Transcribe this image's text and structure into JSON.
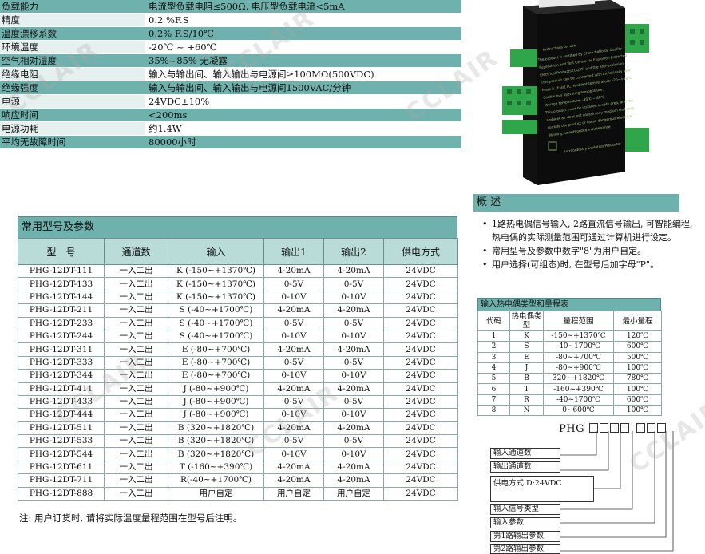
{
  "specs": [
    {
      "label": "负载能力",
      "value": "电流型负载电阻≤500Ω, 电压型负载电流<5mA",
      "style": "teal"
    },
    {
      "label": "精度",
      "value": "0.2 %F.S",
      "style": "white"
    },
    {
      "label": "温度漂移系数",
      "value": "0.2% F.S/10℃",
      "style": "teal"
    },
    {
      "label": "环境温度",
      "value": "-20℃ ~ +60℃",
      "style": "white"
    },
    {
      "label": "空气相对湿度",
      "value": "35%~85% 无凝露",
      "style": "teal"
    },
    {
      "label": "绝缘电阻",
      "value": "输入与输出间、输入输出与电源间≥100MΩ(500VDC)",
      "style": "white"
    },
    {
      "label": "绝缘强度",
      "value": "输入与输出间、输入输出与电源间1500VAC/分钟",
      "style": "teal"
    },
    {
      "label": "电源",
      "value": "24VDC±10%",
      "style": "white"
    },
    {
      "label": "响应时间",
      "value": "<200ms",
      "style": "teal"
    },
    {
      "label": "电源功耗",
      "value": "约1.4W",
      "style": "white"
    },
    {
      "label": "平均无故障时间",
      "value": "80000小时",
      "style": "teal"
    }
  ],
  "product": {
    "instructions_title": "Instructions for use",
    "lines": [
      "The product is certified by China National Quality",
      "Supervision and Test Centre for Explosion Protected",
      "Electrical Products (CQST) and the anti-explosion",
      "This product can be connected with intrinsically safe",
      "mark is [Exia] IIC. Ambient temperature: -20~+60℃",
      "Continuous operating temperature:",
      "Storage temperature: -40℃ ~ 80℃",
      "This product must be installed in safe area, and the",
      "ambient air does not contain any medium that may",
      "corrode the product or cause dangerous electrical",
      "Warning: unauthorized maintenance"
    ],
    "footer": "Extraordinary Evolution Productor"
  },
  "model_table": {
    "title": "常用型号及参数",
    "headers": [
      "型　号",
      "通道数",
      "输入",
      "输出1",
      "输出2",
      "供电方式"
    ],
    "rows": [
      [
        "PHG-12DT-111",
        "一入二出",
        "K (-150~+1370℃)",
        "4-20mA",
        "4-20mA",
        "24VDC"
      ],
      [
        "PHG-12DT-133",
        "一入二出",
        "K (-150~+1370℃)",
        "0-5V",
        "0-5V",
        "24VDC"
      ],
      [
        "PHG-12DT-144",
        "一入二出",
        "K (-150~+1370℃)",
        "0-10V",
        "0-10V",
        "24VDC"
      ],
      [
        "PHG-12DT-211",
        "一入二出",
        "S (-40~+1700℃)",
        "4-20mA",
        "4-20mA",
        "24VDC"
      ],
      [
        "PHG-12DT-233",
        "一入二出",
        "S (-40~+1700℃)",
        "0-5V",
        "0-5V",
        "24VDC"
      ],
      [
        "PHG-12DT-244",
        "一入二出",
        "S (-40~+1700℃)",
        "0-10V",
        "0-10V",
        "24VDC"
      ],
      [
        "PHG-12DT-311",
        "一入二出",
        "E (-80~+700℃)",
        "4-20mA",
        "4-20mA",
        "24VDC"
      ],
      [
        "PHG-12DT-333",
        "一入二出",
        "E (-80~+700℃)",
        "0-5V",
        "0-5V",
        "24VDC"
      ],
      [
        "PHG-12DT-344",
        "一入二出",
        "E (-80~+700℃)",
        "0-10V",
        "0-10V",
        "24VDC"
      ],
      [
        "PHG-12DT-411",
        "一入二出",
        "J (-80~+900℃)",
        "4-20mA",
        "4-20mA",
        "24VDC"
      ],
      [
        "PHG-12DT-433",
        "一入二出",
        "J (-80~+900℃)",
        "0-5V",
        "0-5V",
        "24VDC"
      ],
      [
        "PHG-12DT-444",
        "一入二出",
        "J (-80~+900℃)",
        "0-10V",
        "0-10V",
        "24VDC"
      ],
      [
        "PHG-12DT-511",
        "一入二出",
        "B (320~+1820℃)",
        "4-20mA",
        "4-20mA",
        "24VDC"
      ],
      [
        "PHG-12DT-533",
        "一入二出",
        "B (320~+1820℃)",
        "0-5V",
        "0-5V",
        "24VDC"
      ],
      [
        "PHG-12DT-544",
        "一入二出",
        "B (320~+1820℃)",
        "0-10V",
        "0-10V",
        "24VDC"
      ],
      [
        "PHG-12DT-611",
        "一入二出",
        "T (-160~+390℃)",
        "4-20mA",
        "4-20mA",
        "24VDC"
      ],
      [
        "PHG-12DT-711",
        "一入二出",
        "R(-40~+1700℃)",
        "4-20mA",
        "4-20mA",
        "24VDC"
      ],
      [
        "PHG-12DT-888",
        "一入二出",
        "用户自定",
        "用户自定",
        "用户自定",
        "24VDC"
      ]
    ]
  },
  "note": "注: 用户订货时, 请将实际温度量程范围在型号后注明。",
  "overview": {
    "title": "概 述",
    "items": [
      "1路热电偶信号输入, 2路直流信号输出, 可智能编程, 热电偶的实际测量范围可通过计算机进行设定。",
      "常用型号及参数中数字\"8\"为用户自定。",
      "用户选择(可组态)时, 在型号后加字母\"P\"。"
    ]
  },
  "tc_table": {
    "title": "输入热电偶类型和量程表",
    "headers": [
      "代码",
      "热电偶类型",
      "量程范围",
      "最小量程"
    ],
    "rows": [
      [
        "1",
        "K",
        "-150~+1370℃",
        "120℃"
      ],
      [
        "2",
        "S",
        "-40~1700℃",
        "600℃"
      ],
      [
        "3",
        "E",
        "-80~+700℃",
        "500℃"
      ],
      [
        "4",
        "J",
        "-80~+900℃",
        "100℃"
      ],
      [
        "5",
        "B",
        "320~+1820℃",
        "780℃"
      ],
      [
        "6",
        "T",
        "-160~+390℃",
        "100℃"
      ],
      [
        "7",
        "R",
        "-40~1700℃",
        "600℃"
      ],
      [
        "8",
        "N",
        "0~600℃",
        "100℃"
      ]
    ]
  },
  "code_diagram": {
    "prefix": "PHG-",
    "labels": [
      "输入通道数",
      "输出通道数",
      "供电方式 D:24VDC",
      "输入信号类型",
      "输入参数",
      "第1路输出参数",
      "第2路输出参数"
    ]
  },
  "watermark": "CCLAIR"
}
